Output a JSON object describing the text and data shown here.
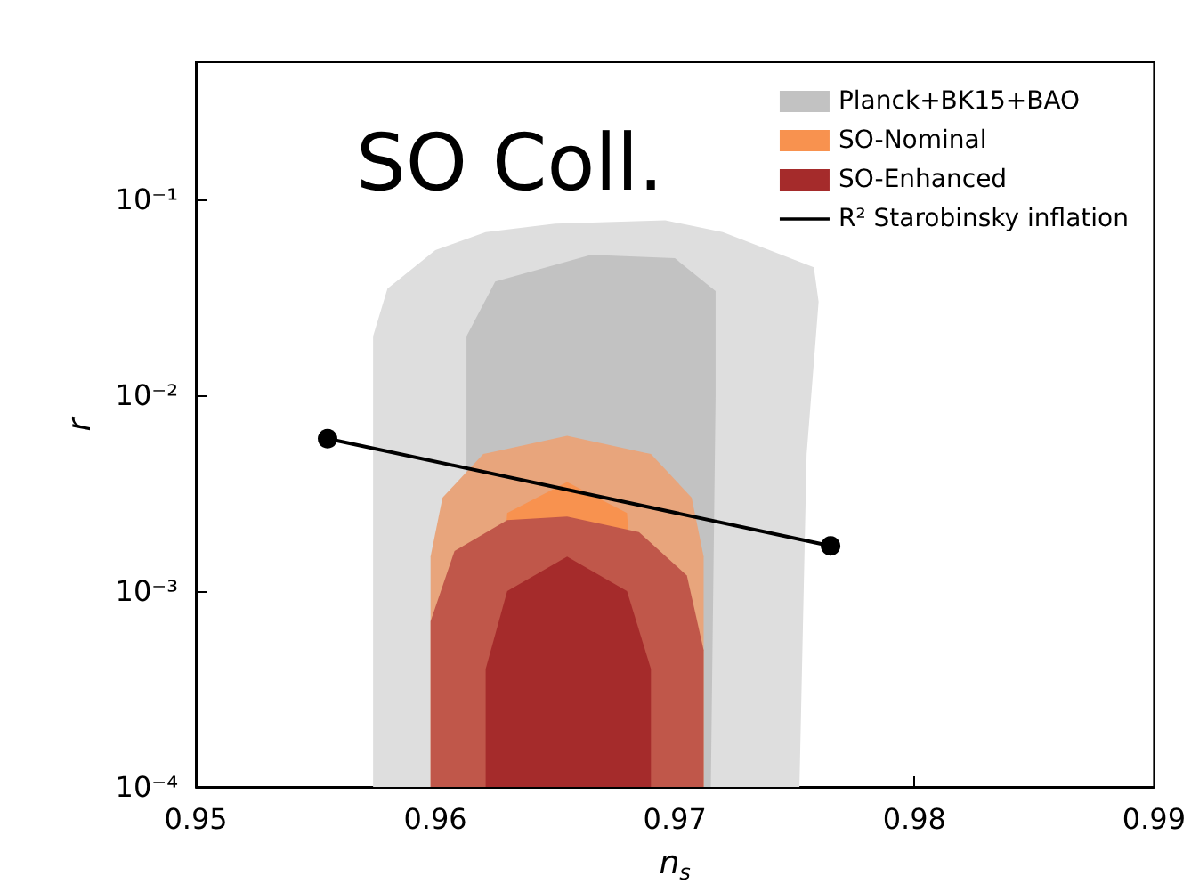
{
  "chart_data": {
    "type": "area",
    "xlabel": "n$_{s}$",
    "ylabel": "r",
    "log": "y",
    "xlim": [
      0.95,
      0.99
    ],
    "xticks": [
      0.95,
      0.96,
      0.97,
      0.98,
      0.99
    ],
    "ylim": [
      0.0001,
      0.5
    ],
    "yticks": [
      {
        "value": 0.0001,
        "label": "10⁻⁴"
      },
      {
        "value": 0.001,
        "label": "10⁻³"
      },
      {
        "value": 0.01,
        "label": "10⁻²"
      },
      {
        "value": 0.1,
        "label": "10⁻¹"
      }
    ],
    "grid": false,
    "legend": "top right",
    "annotations": [
      "SO Coll."
    ],
    "series": [
      {
        "color": "#dedede",
        "x": [
          0.9574,
          0.9574,
          0.958,
          0.96,
          0.9621,
          0.965,
          0.9696,
          0.972,
          0.9758,
          0.976,
          0.9755,
          0.9752
        ],
        "values": [
          0.0001,
          0.02,
          0.035,
          0.055,
          0.068,
          0.075,
          0.078,
          0.068,
          0.045,
          0.03,
          0.005,
          0.0001
        ]
      },
      {
        "name": "Planck+BK15+BAO",
        "color": "#c2c2c2",
        "x": [
          0.9613,
          0.9613,
          0.9625,
          0.9665,
          0.97,
          0.9717,
          0.9717,
          0.9715
        ],
        "values": [
          0.0001,
          0.02,
          0.038,
          0.052,
          0.05,
          0.034,
          0.01,
          0.0001
        ]
      },
      {
        "color": "#e8a57c",
        "x": [
          0.9598,
          0.9598,
          0.9603,
          0.962,
          0.9655,
          0.969,
          0.9707,
          0.9712,
          0.9712
        ],
        "values": [
          0.0001,
          0.0015,
          0.003,
          0.005,
          0.0062,
          0.005,
          0.003,
          0.0015,
          0.0001
        ]
      },
      {
        "name": "SO-Nominal",
        "color": "#f8924f",
        "x": [
          0.9621,
          0.963,
          0.9655,
          0.968,
          0.9688
        ],
        "values": [
          0.0001,
          0.0025,
          0.0036,
          0.0025,
          0.0001
        ]
      },
      {
        "color": "#c0574a",
        "x": [
          0.9598,
          0.9598,
          0.9608,
          0.963,
          0.9655,
          0.9685,
          0.9705,
          0.9712,
          0.9712
        ],
        "values": [
          0.0001,
          0.0007,
          0.0016,
          0.0023,
          0.0024,
          0.002,
          0.0012,
          0.0005,
          0.0001
        ]
      },
      {
        "name": "SO-Enhanced",
        "color": "#a52b2b",
        "x": [
          0.9621,
          0.9621,
          0.963,
          0.9655,
          0.968,
          0.969,
          0.969
        ],
        "values": [
          0.0001,
          0.0004,
          0.001,
          0.0015,
          0.001,
          0.0004,
          0.0001
        ]
      },
      {
        "name": "R² Starobinsky inflation",
        "type": "line",
        "color": "#000000",
        "marker": "circle",
        "x": [
          0.9555,
          0.9765
        ],
        "values": [
          0.006,
          0.0017
        ]
      }
    ]
  }
}
